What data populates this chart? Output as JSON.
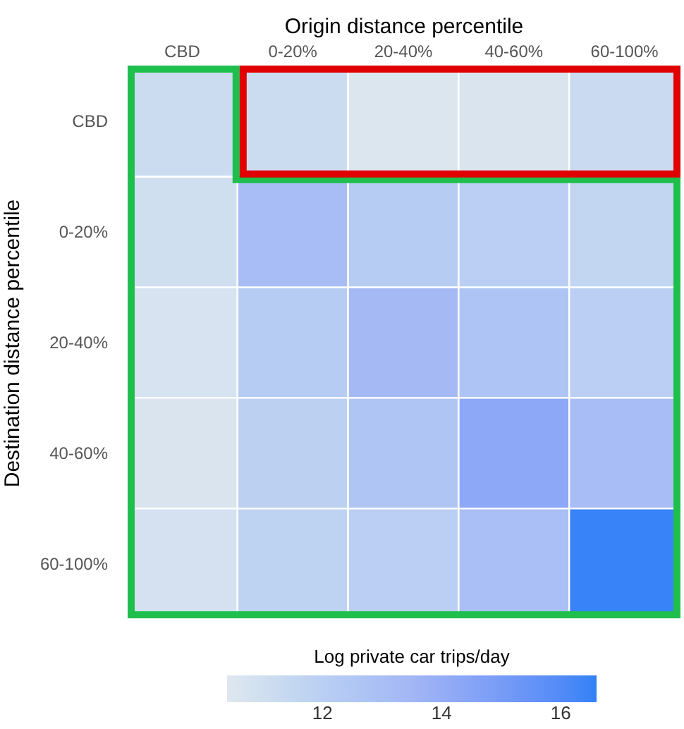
{
  "chart_data": {
    "type": "heatmap",
    "xlabel": "Origin distance percentile",
    "ylabel": "Destination distance percentile",
    "clabel": "Log private car trips/day",
    "categories": [
      "CBD",
      "0-20%",
      "20-40%",
      "40-60%",
      "60-100%"
    ],
    "y_categories": [
      "CBD",
      "0-20%",
      "20-40%",
      "40-60%",
      "60-100%"
    ],
    "cells": [
      [
        11.2,
        11.2,
        10.5,
        10.6,
        11.3
      ],
      [
        11.0,
        13.1,
        12.2,
        12.0,
        11.6
      ],
      [
        10.7,
        12.2,
        13.3,
        12.7,
        12.0
      ],
      [
        10.6,
        11.9,
        12.6,
        14.3,
        13.1
      ],
      [
        10.8,
        11.8,
        12.0,
        13.0,
        16.5
      ]
    ],
    "clim": [
      10.4,
      16.6
    ],
    "cticks": [
      12,
      14,
      16
    ]
  }
}
